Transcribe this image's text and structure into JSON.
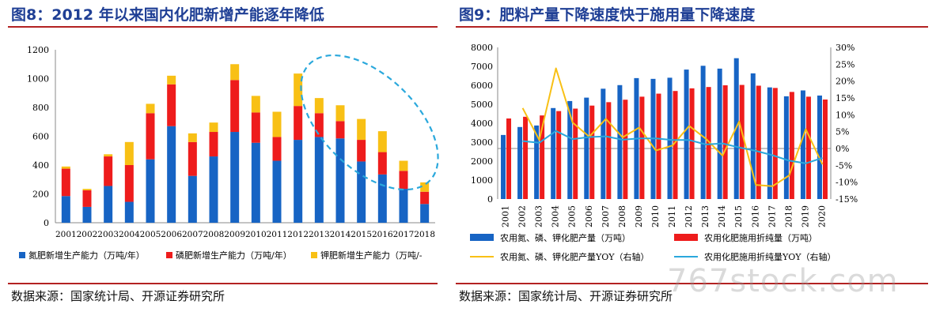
{
  "left": {
    "title": "图8：2012 年以来国内化肥新增产能逐年降低",
    "source": "数据来源：国家统计局、开源证券研究所"
  },
  "right": {
    "title": "图9：肥料产量下降速度快于施用量下降速度",
    "source": "数据来源：国家统计局、开源证券研究所"
  },
  "watermark": "767stock.com",
  "colors": {
    "title": "#1f3f95",
    "rule": "#b32222",
    "blue": "#1764c4",
    "red": "#ee1c1c",
    "yellow": "#f8c015",
    "cyan": "#2aa8dc"
  },
  "chart_data": [
    {
      "type": "bar",
      "stacked": true,
      "categories": [
        "2001",
        "2002",
        "2003",
        "2004",
        "2005",
        "2006",
        "2007",
        "2008",
        "2009",
        "2010",
        "2011",
        "2012",
        "2013",
        "2014",
        "2015",
        "2016",
        "2017",
        "2018"
      ],
      "series": [
        {
          "name": "氮肥新增生产能力（万吨/年）",
          "color": "#1764c4",
          "values": [
            185,
            110,
            255,
            145,
            440,
            670,
            325,
            460,
            630,
            555,
            430,
            575,
            595,
            585,
            425,
            335,
            235,
            130
          ]
        },
        {
          "name": "磷肥新增生产能力（万吨/年）",
          "color": "#ee1c1c",
          "values": [
            190,
            115,
            205,
            255,
            320,
            290,
            235,
            170,
            360,
            210,
            165,
            235,
            165,
            120,
            150,
            155,
            125,
            85
          ]
        },
        {
          "name": "钾肥新增生产能力（万吨/-",
          "color": "#f8c015",
          "values": [
            15,
            10,
            15,
            160,
            65,
            60,
            60,
            65,
            110,
            115,
            175,
            225,
            105,
            110,
            145,
            145,
            70,
            65
          ]
        }
      ],
      "ylim": [
        0,
        1200
      ],
      "yticks": [
        "0",
        "200",
        "400",
        "600",
        "800",
        "1000",
        "1200"
      ],
      "grid": false,
      "legend": "bottom",
      "annotation": "dashed ellipse highlighting 2012-2018"
    },
    {
      "type": "bar+line",
      "categories": [
        "2001",
        "2002",
        "2003",
        "2004",
        "2005",
        "2006",
        "2007",
        "2008",
        "2009",
        "2010",
        "2011",
        "2012",
        "2013",
        "2014",
        "2015",
        "2016",
        "2017",
        "2018",
        "2019",
        "2020"
      ],
      "bar_series": [
        {
          "name": "农用氮、磷、钾化肥产量（万吨）",
          "color": "#1764c4",
          "values": [
            3380,
            3800,
            3880,
            4800,
            5170,
            5350,
            5820,
            6010,
            6380,
            6340,
            6400,
            6830,
            7030,
            6880,
            7430,
            6630,
            5890,
            5420,
            5730,
            5460
          ]
        },
        {
          "name": "农用化肥施用折纯量（万吨）",
          "color": "#ee1c1c",
          "values": [
            4250,
            4340,
            4410,
            4640,
            4770,
            4930,
            5110,
            5240,
            5400,
            5560,
            5700,
            5840,
            5910,
            6000,
            6020,
            5980,
            5860,
            5650,
            5400,
            5250
          ]
        }
      ],
      "line_series": [
        {
          "name": "农用氮、磷、钾化肥产量YOY（右轴）",
          "color": "#f8c015",
          "values": [
            null,
            12.0,
            2.5,
            23.8,
            7.7,
            3.5,
            8.8,
            3.3,
            6.2,
            -0.6,
            0.9,
            6.7,
            2.9,
            -2.1,
            8.0,
            -10.8,
            -11.2,
            -8.0,
            5.7,
            -4.7
          ]
        },
        {
          "name": "农用化肥施用折纯量YOY（右轴）",
          "color": "#2aa8dc",
          "values": [
            null,
            2.2,
            1.7,
            5.2,
            2.8,
            3.4,
            3.6,
            2.6,
            3.0,
            3.0,
            2.5,
            2.5,
            1.2,
            1.5,
            0.3,
            -0.7,
            -2.0,
            -3.6,
            -4.4,
            -2.8
          ]
        }
      ],
      "ylim": [
        0,
        8000
      ],
      "yticks": [
        "0",
        "1000",
        "2000",
        "3000",
        "4000",
        "5000",
        "6000",
        "7000",
        "8000"
      ],
      "y2lim": [
        -15,
        30
      ],
      "y2ticks": [
        "-15%",
        "-10%",
        "-5%",
        "0%",
        "5%",
        "10%",
        "15%",
        "20%",
        "25%",
        "30%"
      ],
      "grid": false,
      "legend": "bottom"
    }
  ]
}
